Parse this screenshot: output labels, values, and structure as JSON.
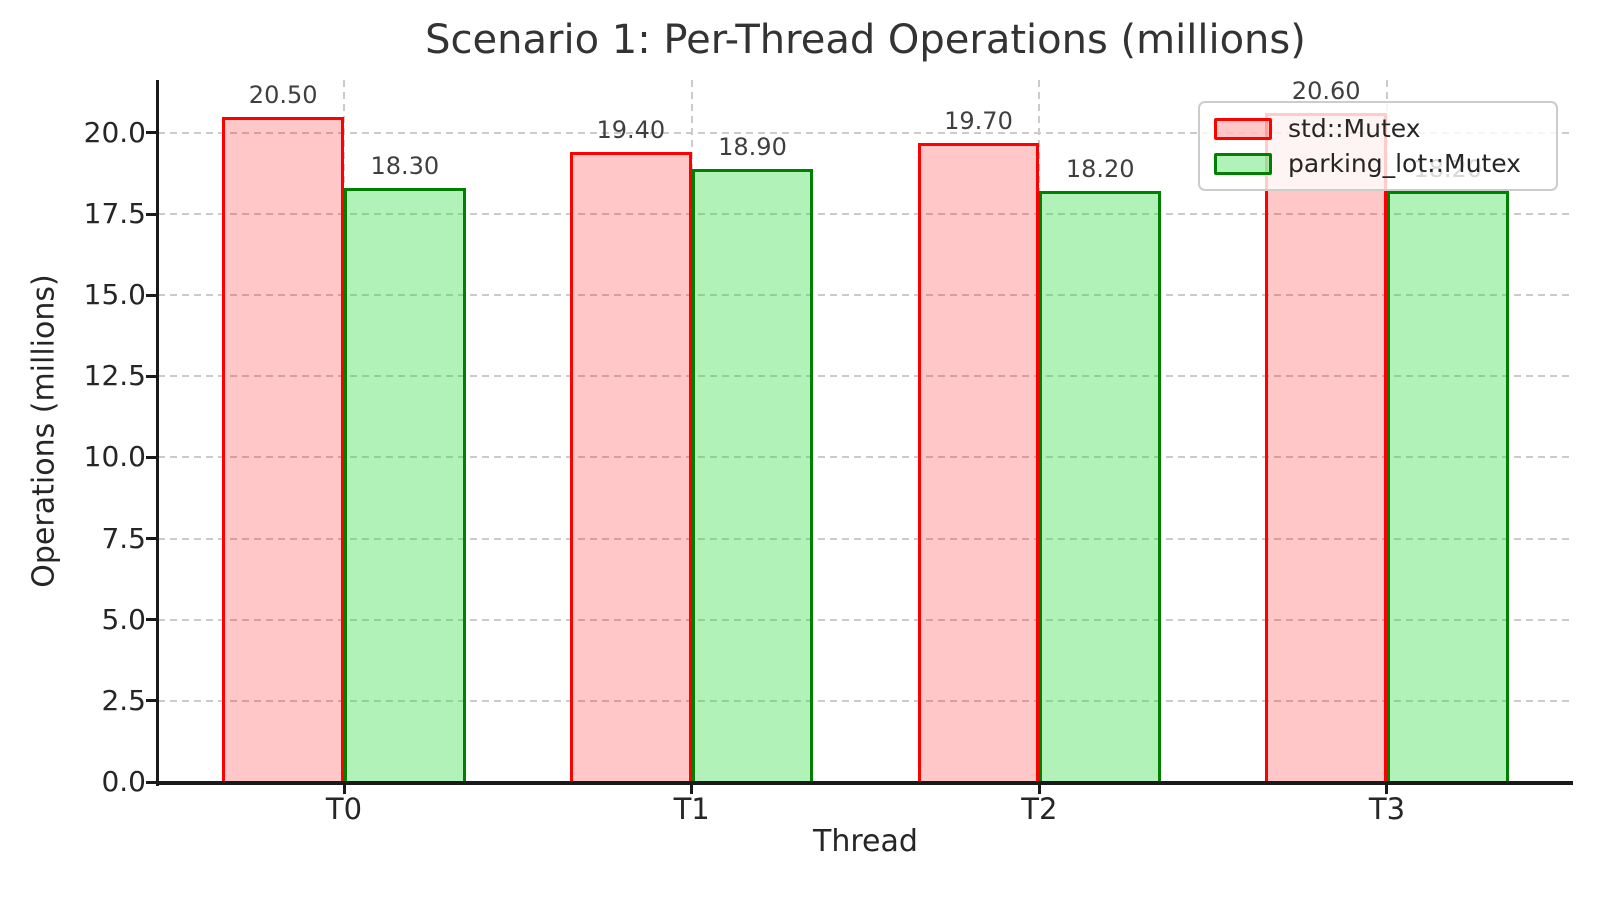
{
  "figure": {
    "background": "#ffffff"
  },
  "chart_data": {
    "type": "bar",
    "title": "Scenario 1: Per-Thread Operations (millions)",
    "xlabel": "Thread",
    "ylabel": "Operations (millions)",
    "categories": [
      "T0",
      "T1",
      "T2",
      "T3"
    ],
    "series": [
      {
        "name": "std::Mutex",
        "values": [
          20.5,
          19.4,
          19.7,
          20.6
        ],
        "labels": [
          "20.50",
          "19.40",
          "19.70",
          "20.60"
        ],
        "fill_color": "#ff0000",
        "fill_alpha": 0.22,
        "edge_color": "#ff0000"
      },
      {
        "name": "parking_lot::Mutex",
        "values": [
          18.3,
          18.9,
          18.2,
          18.2
        ],
        "labels": [
          "18.30",
          "18.90",
          "18.20",
          "18.20"
        ],
        "fill_color": "#28dc3c",
        "fill_alpha": 0.37,
        "edge_color": "#008000"
      }
    ],
    "yticks": [
      0.0,
      2.5,
      5.0,
      7.5,
      10.0,
      12.5,
      15.0,
      17.5,
      20.0
    ],
    "ytick_labels": [
      "0.0",
      "2.5",
      "5.0",
      "7.5",
      "10.0",
      "12.5",
      "15.0",
      "17.5",
      "20.0"
    ],
    "ylim": [
      0,
      21.63
    ],
    "xlim": [
      -0.535,
      3.535
    ],
    "bar_width": 0.35,
    "grid": true,
    "grid_color": "#cbcbcb",
    "axis_color": "#1a1a1a",
    "text_color": "#262626",
    "value_label_color": "#3f3f3f",
    "legend": {
      "position": "upper right",
      "border_color": "#cccccc",
      "background": "#ffffff",
      "background_alpha": 0.8
    }
  }
}
